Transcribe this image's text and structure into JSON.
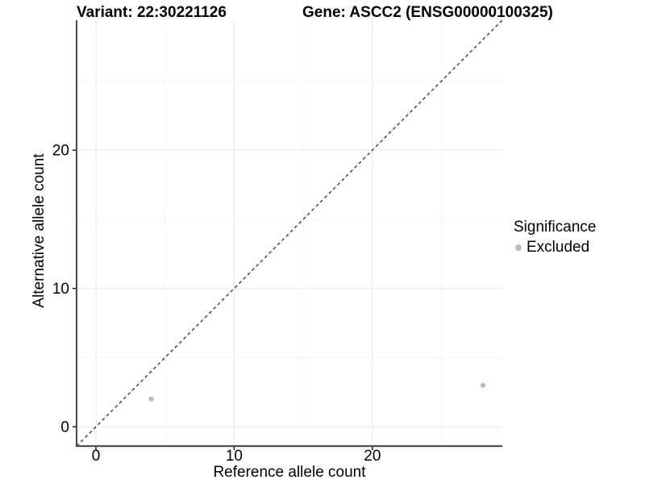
{
  "header": {
    "variant_title": "Variant: 22:30221126",
    "gene_title": "Gene: ASCC2 (ENSG00000100325)"
  },
  "axes": {
    "x_label": "Reference allele count",
    "y_label": "Alternative allele count"
  },
  "legend": {
    "title": "Significance",
    "items": [
      {
        "label": "Excluded",
        "color": "#bcbcbc"
      }
    ]
  },
  "chart_data": {
    "type": "scatter",
    "title_left": "Variant: 22:30221126",
    "title_right": "Gene: ASCC2 (ENSG00000100325)",
    "xlabel": "Reference allele count",
    "ylabel": "Alternative allele count",
    "xlim": [
      -1.4,
      29.4
    ],
    "ylim": [
      -1.4,
      29.4
    ],
    "x_ticks": [
      0,
      10,
      20
    ],
    "y_ticks": [
      0,
      10,
      20
    ],
    "x_minor_ticks": [
      5,
      15,
      25
    ],
    "y_minor_ticks": [
      5,
      15,
      25
    ],
    "grid": true,
    "legend_position": "right",
    "legend_title": "Significance",
    "reference_line": {
      "type": "identity",
      "slope": 1,
      "intercept": 0,
      "style": "dashed"
    },
    "series": [
      {
        "name": "Excluded",
        "color": "#bcbcbc",
        "points": [
          {
            "x": 4,
            "y": 2
          },
          {
            "x": 28,
            "y": 3
          }
        ]
      }
    ]
  },
  "colors": {
    "background": "#ffffff",
    "grid_major": "#e8e8e8",
    "grid_minor": "#f3f3f3",
    "axis_line_x": "#4d4d4d",
    "axis_line_y": "#1a1a1a",
    "tick": "#1a1a1a",
    "reference_line": "#1a1a1a",
    "text": "#000000"
  }
}
